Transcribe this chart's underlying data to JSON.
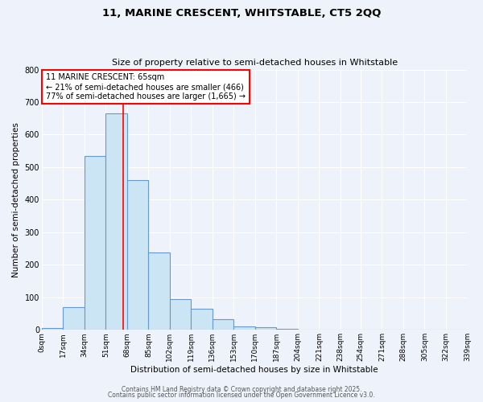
{
  "title1": "11, MARINE CRESCENT, WHITSTABLE, CT5 2QQ",
  "title2": "Size of property relative to semi-detached houses in Whitstable",
  "xlabel": "Distribution of semi-detached houses by size in Whitstable",
  "ylabel": "Number of semi-detached properties",
  "bin_edges": [
    0,
    17,
    34,
    51,
    68,
    85,
    102,
    119,
    136,
    153,
    170,
    187,
    204,
    221,
    238,
    254,
    271,
    288,
    305,
    322,
    339
  ],
  "bin_labels": [
    "0sqm",
    "17sqm",
    "34sqm",
    "51sqm",
    "68sqm",
    "85sqm",
    "102sqm",
    "119sqm",
    "136sqm",
    "153sqm",
    "170sqm",
    "187sqm",
    "204sqm",
    "221sqm",
    "238sqm",
    "254sqm",
    "271sqm",
    "288sqm",
    "305sqm",
    "322sqm",
    "339sqm"
  ],
  "counts": [
    5,
    70,
    535,
    665,
    460,
    238,
    95,
    65,
    33,
    10,
    8,
    2,
    1,
    0,
    0,
    0,
    0,
    0,
    0,
    0
  ],
  "bar_facecolor": "#cce5f5",
  "bar_edgecolor": "#6699cc",
  "background_color": "#eef3fb",
  "grid_color": "#ffffff",
  "marker_x": 65,
  "marker_line_color": "red",
  "annotation_line1": "11 MARINE CRESCENT: 65sqm",
  "annotation_line2": "← 21% of semi-detached houses are smaller (466)",
  "annotation_line3": "77% of semi-detached houses are larger (1,665) →",
  "annotation_box_edgecolor": "red",
  "ylim": [
    0,
    800
  ],
  "xlim": [
    0,
    339
  ],
  "yticks": [
    0,
    100,
    200,
    300,
    400,
    500,
    600,
    700,
    800
  ],
  "footer1": "Contains HM Land Registry data © Crown copyright and database right 2025.",
  "footer2": "Contains public sector information licensed under the Open Government Licence v3.0."
}
